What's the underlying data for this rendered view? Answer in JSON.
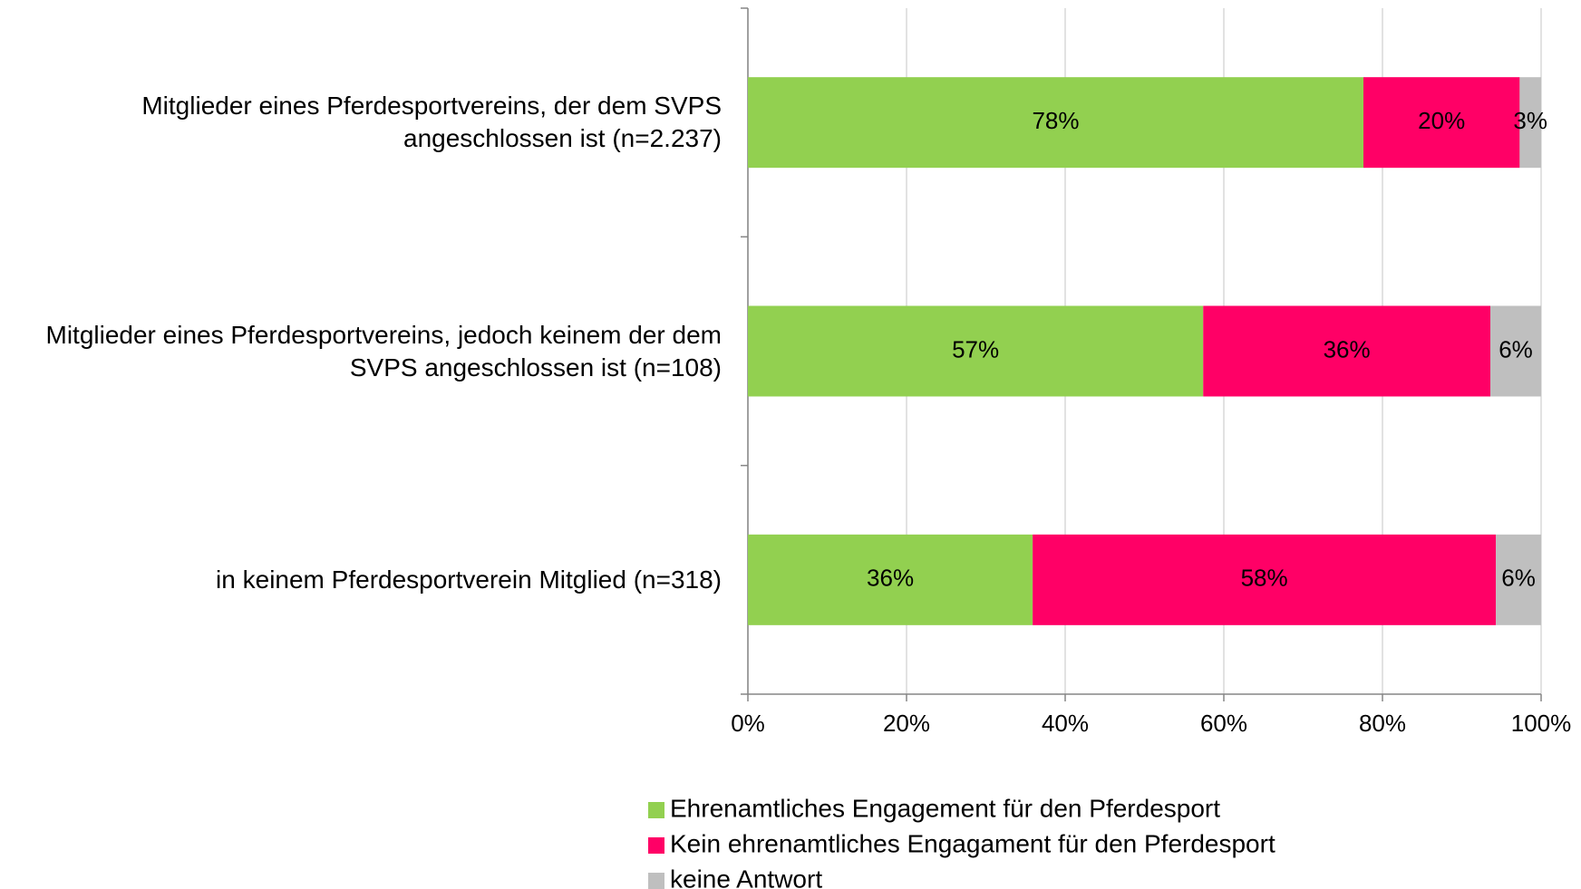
{
  "chart_data": {
    "type": "stacked-bar-horizontal",
    "categories": [
      "Mitglieder eines Pferdesportvereins, der dem SVPS angeschlossen ist (n=2.237)",
      "Mitglieder eines Pferdesportvereins, jedoch keinem der dem SVPS angeschlossen ist (n=108)",
      "in keinem Pferdesportverein Mitglied (n=318)"
    ],
    "series": [
      {
        "name": "Ehrenamtliches Engagement für den Pferdesport",
        "color": "#92d050",
        "values": [
          77.6,
          57.4,
          35.9
        ],
        "value_labels": [
          "78%",
          "57%",
          "36%"
        ]
      },
      {
        "name": "Kein ehrenamtliches Engagament für den Pferdesport",
        "color": "#ff0066",
        "values": [
          19.7,
          36.2,
          58.4
        ],
        "value_labels": [
          "20%",
          "36%",
          "58%"
        ]
      },
      {
        "name": "keine Antwort",
        "color": "#bfbfbf",
        "values": [
          2.7,
          6.4,
          5.7
        ],
        "value_labels": [
          "3%",
          "6%",
          "6%"
        ]
      }
    ],
    "xlim": [
      0,
      100
    ],
    "xticks": [
      {
        "value": 0,
        "label": "0%"
      },
      {
        "value": 20,
        "label": "20%"
      },
      {
        "value": 40,
        "label": "40%"
      },
      {
        "value": 60,
        "label": "60%"
      },
      {
        "value": 80,
        "label": "80%"
      },
      {
        "value": 100,
        "label": "100%"
      }
    ],
    "grid": true,
    "legend": "bottom"
  }
}
